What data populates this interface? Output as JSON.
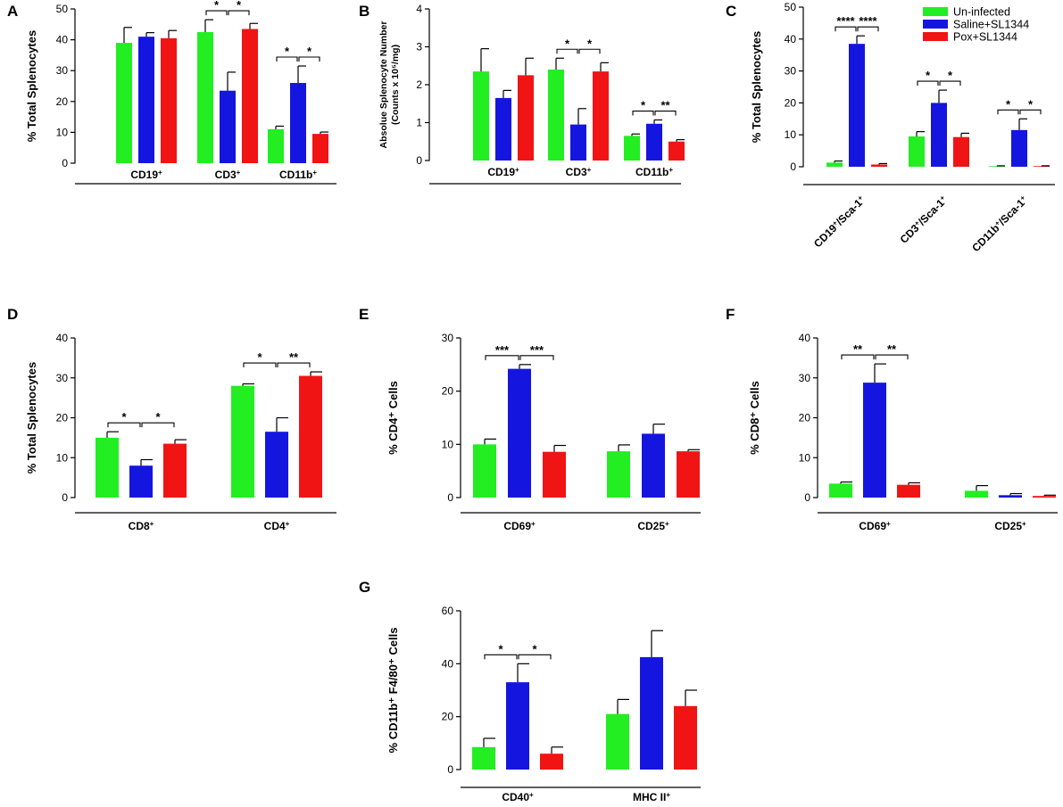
{
  "colors": {
    "green": "#22ee22",
    "blue": "#1515e0",
    "red": "#f01414",
    "axis": "#000000"
  },
  "legend": [
    {
      "label": "Un-infected",
      "color": "#22ee22"
    },
    {
      "label": "Saline+SL1344",
      "color": "#1515e0"
    },
    {
      "label": "Pox+SL1344",
      "color": "#f01414"
    }
  ],
  "chart_data": [
    {
      "panel": "A",
      "type": "bar",
      "ylabel": "% Total Splenocytes",
      "ylim": [
        0,
        50
      ],
      "yticks": [
        "0",
        "10",
        "20",
        "30",
        "40",
        "50"
      ],
      "categories": [
        {
          "base": "CD19",
          "sup": "+"
        },
        {
          "base": "CD3",
          "sup": "+"
        },
        {
          "base": "CD11b",
          "sup": "+"
        }
      ],
      "series": [
        {
          "name": "Un-infected",
          "values": [
            39,
            42.5,
            11
          ],
          "errors": [
            5,
            4,
            1
          ]
        },
        {
          "name": "Saline+SL1344",
          "values": [
            41,
            23.5,
            26
          ],
          "errors": [
            1.3,
            6,
            5.5
          ]
        },
        {
          "name": "Pox+SL1344",
          "values": [
            40.5,
            43.5,
            9.5
          ],
          "errors": [
            2.5,
            1.8,
            0.6
          ]
        }
      ],
      "significance": [
        {
          "cat": 1,
          "from": 0,
          "to": 1,
          "label": "*"
        },
        {
          "cat": 1,
          "from": 1,
          "to": 2,
          "label": "*"
        },
        {
          "cat": 2,
          "from": 0,
          "to": 1,
          "label": "*"
        },
        {
          "cat": 2,
          "from": 1,
          "to": 2,
          "label": "*"
        }
      ]
    },
    {
      "panel": "B",
      "type": "bar",
      "ylabel": "Absolue Splenocyte Number",
      "ylabel2": "(Counts x 10⁵/mg)",
      "ylim": [
        0,
        4
      ],
      "yticks": [
        "0",
        "1",
        "2",
        "3",
        "4"
      ],
      "categories": [
        {
          "base": "CD19",
          "sup": "+"
        },
        {
          "base": "CD3",
          "sup": "+"
        },
        {
          "base": "CD11b",
          "sup": "+"
        }
      ],
      "series": [
        {
          "name": "Un-infected",
          "values": [
            2.35,
            2.4,
            0.65
          ],
          "errors": [
            0.6,
            0.3,
            0.05
          ]
        },
        {
          "name": "Saline+SL1344",
          "values": [
            1.65,
            0.95,
            0.97
          ],
          "errors": [
            0.2,
            0.42,
            0.1
          ]
        },
        {
          "name": "Pox+SL1344",
          "values": [
            2.25,
            2.35,
            0.5
          ],
          "errors": [
            0.45,
            0.23,
            0.05
          ]
        }
      ],
      "significance": [
        {
          "cat": 1,
          "from": 0,
          "to": 1,
          "label": "*"
        },
        {
          "cat": 1,
          "from": 1,
          "to": 2,
          "label": "*"
        },
        {
          "cat": 2,
          "from": 0,
          "to": 1,
          "label": "*"
        },
        {
          "cat": 2,
          "from": 1,
          "to": 2,
          "label": "**"
        }
      ]
    },
    {
      "panel": "C",
      "type": "bar",
      "ylabel": "% Total Splenocytes",
      "ylim": [
        0,
        50
      ],
      "yticks": [
        "0",
        "10",
        "20",
        "30",
        "40",
        "50"
      ],
      "categories": [
        {
          "base": "CD19",
          "sup": "+",
          "mid": "/Sca-1",
          "sup2": "+"
        },
        {
          "base": "CD3",
          "sup": "+",
          "mid": "/Sca-1",
          "sup2": "+"
        },
        {
          "base": "CD11b",
          "sup": "+",
          "mid": "/Sca-1",
          "sup2": "+"
        }
      ],
      "series": [
        {
          "name": "Un-infected",
          "values": [
            1.3,
            9.5,
            0.2
          ],
          "errors": [
            0.5,
            1.5,
            0.1
          ]
        },
        {
          "name": "Saline+SL1344",
          "values": [
            38.5,
            20,
            11.5
          ],
          "errors": [
            2.5,
            4,
            3.5
          ]
        },
        {
          "name": "Pox+SL1344",
          "values": [
            0.7,
            9.3,
            0.2
          ],
          "errors": [
            0.3,
            1.2,
            0.1
          ]
        }
      ],
      "significance": [
        {
          "cat": 0,
          "from": 0,
          "to": 1,
          "label": "****"
        },
        {
          "cat": 0,
          "from": 1,
          "to": 2,
          "label": "****"
        },
        {
          "cat": 1,
          "from": 0,
          "to": 1,
          "label": "*"
        },
        {
          "cat": 1,
          "from": 1,
          "to": 2,
          "label": "*"
        },
        {
          "cat": 2,
          "from": 0,
          "to": 1,
          "label": "*"
        },
        {
          "cat": 2,
          "from": 1,
          "to": 2,
          "label": "*"
        }
      ]
    },
    {
      "panel": "D",
      "type": "bar",
      "ylabel": "% Total Splenocytes",
      "ylim": [
        0,
        40
      ],
      "yticks": [
        "0",
        "10",
        "20",
        "30",
        "40"
      ],
      "categories": [
        {
          "base": "CD8",
          "sup": "+"
        },
        {
          "base": "CD4",
          "sup": "+"
        }
      ],
      "series": [
        {
          "name": "Un-infected",
          "values": [
            15,
            28
          ],
          "errors": [
            1.5,
            0.5
          ]
        },
        {
          "name": "Saline+SL1344",
          "values": [
            8,
            16.5
          ],
          "errors": [
            1.5,
            3.5
          ]
        },
        {
          "name": "Pox+SL1344",
          "values": [
            13.5,
            30.5
          ],
          "errors": [
            1,
            1
          ]
        }
      ],
      "significance": [
        {
          "cat": 0,
          "from": 0,
          "to": 1,
          "label": "*"
        },
        {
          "cat": 0,
          "from": 1,
          "to": 2,
          "label": "*"
        },
        {
          "cat": 1,
          "from": 0,
          "to": 1,
          "label": "*"
        },
        {
          "cat": 1,
          "from": 1,
          "to": 2,
          "label": "**"
        }
      ]
    },
    {
      "panel": "E",
      "type": "bar",
      "ylabel": "% CD4⁺ Cells",
      "ylim": [
        0,
        30
      ],
      "yticks": [
        "0",
        "10",
        "20",
        "30"
      ],
      "categories": [
        {
          "base": "CD69",
          "sup": "+"
        },
        {
          "base": "CD25",
          "sup": "+"
        }
      ],
      "series": [
        {
          "name": "Un-infected",
          "values": [
            10,
            8.7
          ],
          "errors": [
            1,
            1.2
          ]
        },
        {
          "name": "Saline+SL1344",
          "values": [
            24.2,
            12
          ],
          "errors": [
            0.8,
            1.8
          ]
        },
        {
          "name": "Pox+SL1344",
          "values": [
            8.6,
            8.7
          ],
          "errors": [
            1.2,
            0.3
          ]
        }
      ],
      "significance": [
        {
          "cat": 0,
          "from": 0,
          "to": 1,
          "label": "***"
        },
        {
          "cat": 0,
          "from": 1,
          "to": 2,
          "label": "***"
        }
      ]
    },
    {
      "panel": "F",
      "type": "bar",
      "ylabel": "% CD8⁺ Cells",
      "ylim": [
        0,
        40
      ],
      "yticks": [
        "0",
        "10",
        "20",
        "30",
        "40"
      ],
      "categories": [
        {
          "base": "CD69",
          "sup": "+"
        },
        {
          "base": "CD25",
          "sup": "+"
        }
      ],
      "series": [
        {
          "name": "Un-infected",
          "values": [
            3.5,
            1.7
          ],
          "errors": [
            0.4,
            1.3
          ]
        },
        {
          "name": "Saline+SL1344",
          "values": [
            28.8,
            0.6
          ],
          "errors": [
            4.7,
            0.4
          ]
        },
        {
          "name": "Pox+SL1344",
          "values": [
            3.2,
            0.4
          ],
          "errors": [
            0.5,
            0.2
          ]
        }
      ],
      "significance": [
        {
          "cat": 0,
          "from": 0,
          "to": 1,
          "label": "**"
        },
        {
          "cat": 0,
          "from": 1,
          "to": 2,
          "label": "**"
        }
      ]
    },
    {
      "panel": "G",
      "type": "bar",
      "ylabel": "% CD11b⁺ F4/80⁺ Cells",
      "ylim": [
        0,
        60
      ],
      "yticks": [
        "0",
        "20",
        "40",
        "60"
      ],
      "categories": [
        {
          "base": "CD40",
          "sup": "+"
        },
        {
          "base": "MHC II",
          "sup": "+"
        }
      ],
      "series": [
        {
          "name": "Un-infected",
          "values": [
            8.5,
            21
          ],
          "errors": [
            3.3,
            5.5
          ]
        },
        {
          "name": "Saline+SL1344",
          "values": [
            33,
            42.5
          ],
          "errors": [
            7,
            10
          ]
        },
        {
          "name": "Pox+SL1344",
          "values": [
            6,
            24
          ],
          "errors": [
            2.5,
            6
          ]
        }
      ],
      "significance": [
        {
          "cat": 0,
          "from": 0,
          "to": 1,
          "label": "*"
        },
        {
          "cat": 0,
          "from": 1,
          "to": 2,
          "label": "*"
        }
      ]
    }
  ]
}
